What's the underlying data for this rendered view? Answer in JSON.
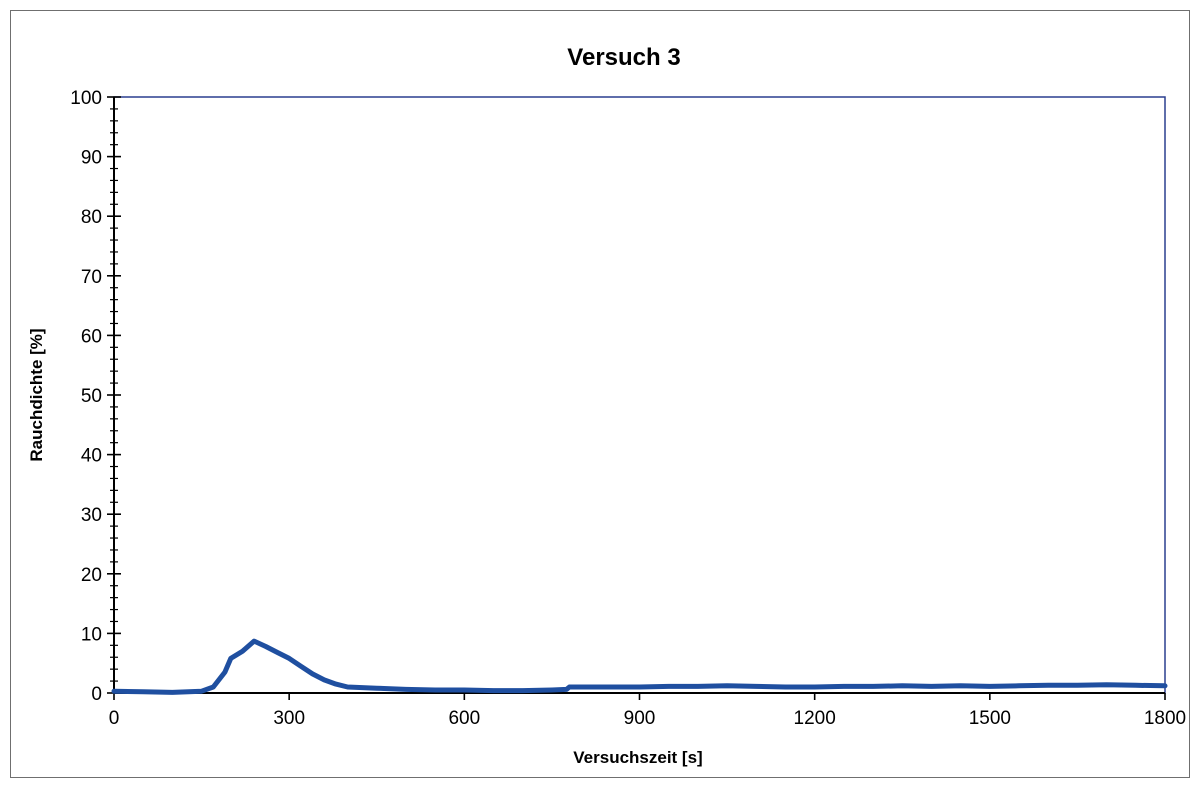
{
  "chart_data": {
    "type": "line",
    "title": "Versuch 3",
    "xlabel": "Versuchszeit  [s]",
    "ylabel": "Rauchdichte  [%]",
    "xlim": [
      0,
      1800
    ],
    "ylim": [
      0,
      100
    ],
    "x_ticks": [
      0,
      300,
      600,
      900,
      1200,
      1500,
      1800
    ],
    "y_ticks": [
      0,
      10,
      20,
      30,
      40,
      50,
      60,
      70,
      80,
      90,
      100
    ],
    "grid": false,
    "legend": "none",
    "series": [
      {
        "color": "#1f4fa0",
        "x": [
          0,
          50,
          100,
          150,
          170,
          190,
          200,
          220,
          240,
          260,
          280,
          300,
          320,
          340,
          360,
          380,
          400,
          450,
          500,
          550,
          600,
          650,
          700,
          750,
          775,
          780,
          850,
          900,
          950,
          1000,
          1050,
          1100,
          1150,
          1200,
          1250,
          1300,
          1350,
          1400,
          1450,
          1500,
          1550,
          1600,
          1650,
          1700,
          1750,
          1800
        ],
        "y": [
          0.3,
          0.2,
          0.1,
          0.3,
          1.0,
          3.5,
          5.8,
          7.0,
          8.7,
          7.8,
          6.8,
          5.8,
          4.5,
          3.2,
          2.2,
          1.5,
          1.0,
          0.8,
          0.6,
          0.5,
          0.5,
          0.4,
          0.4,
          0.5,
          0.6,
          1.0,
          1.0,
          1.0,
          1.1,
          1.1,
          1.2,
          1.1,
          1.0,
          1.0,
          1.1,
          1.1,
          1.2,
          1.1,
          1.2,
          1.1,
          1.2,
          1.3,
          1.3,
          1.4,
          1.3,
          1.2
        ]
      }
    ]
  }
}
